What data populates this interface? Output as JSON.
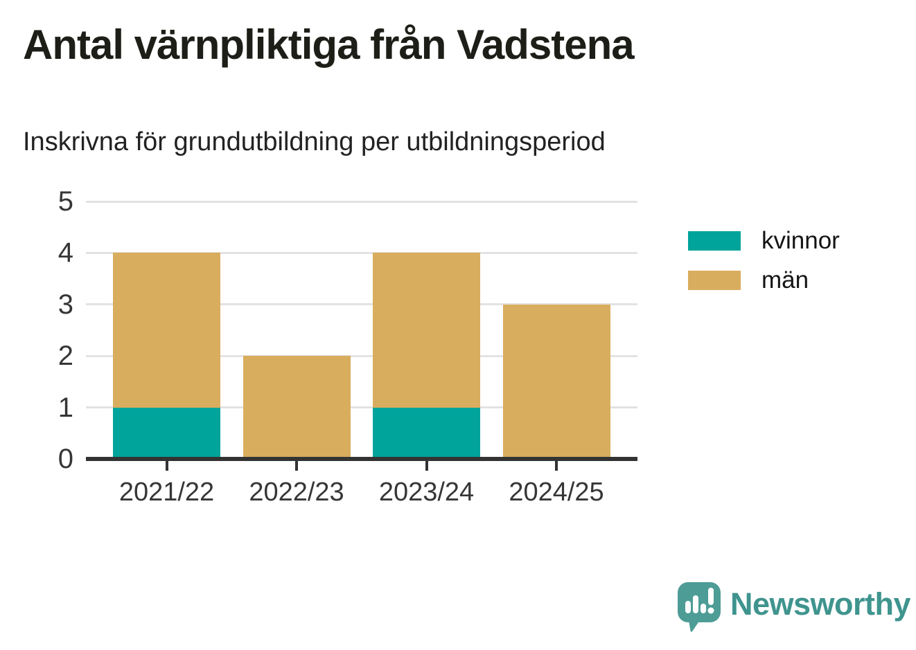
{
  "header": {
    "title": "Antal värnpliktiga från Vadstena",
    "subtitle": "Inskrivna för grundutbildning per utbildningsperiod"
  },
  "chart_data": {
    "type": "bar",
    "stacked": true,
    "title": "Antal värnpliktiga från Vadstena",
    "subtitle": "Inskrivna för grundutbildning per utbildningsperiod",
    "categories": [
      "2021/22",
      "2022/23",
      "2023/24",
      "2024/25"
    ],
    "series": [
      {
        "name": "kvinnor",
        "color": "#00a49b",
        "values": [
          1,
          0,
          1,
          0
        ]
      },
      {
        "name": "män",
        "color": "#d9ad5e",
        "values": [
          3,
          2,
          3,
          3
        ]
      }
    ],
    "xlabel": "",
    "ylabel": "",
    "ylim": [
      0,
      5
    ],
    "yticks": [
      0,
      1,
      2,
      3,
      4,
      5
    ],
    "grid": true,
    "legend_position": "right-of-plot"
  },
  "style": {
    "gridline_color": "#e2e2e2",
    "axis_color": "#333333",
    "tick_label_color": "#363636",
    "series_teal": "#00a49b",
    "series_tan": "#d9ad5e"
  },
  "branding": {
    "logo_text": "Newsworthy",
    "logo_icon": "newsworthy-speech-bubble-bar-chart-icon",
    "logo_text_color": "#3f948e",
    "logo_icon_color": "#4d9c96"
  }
}
